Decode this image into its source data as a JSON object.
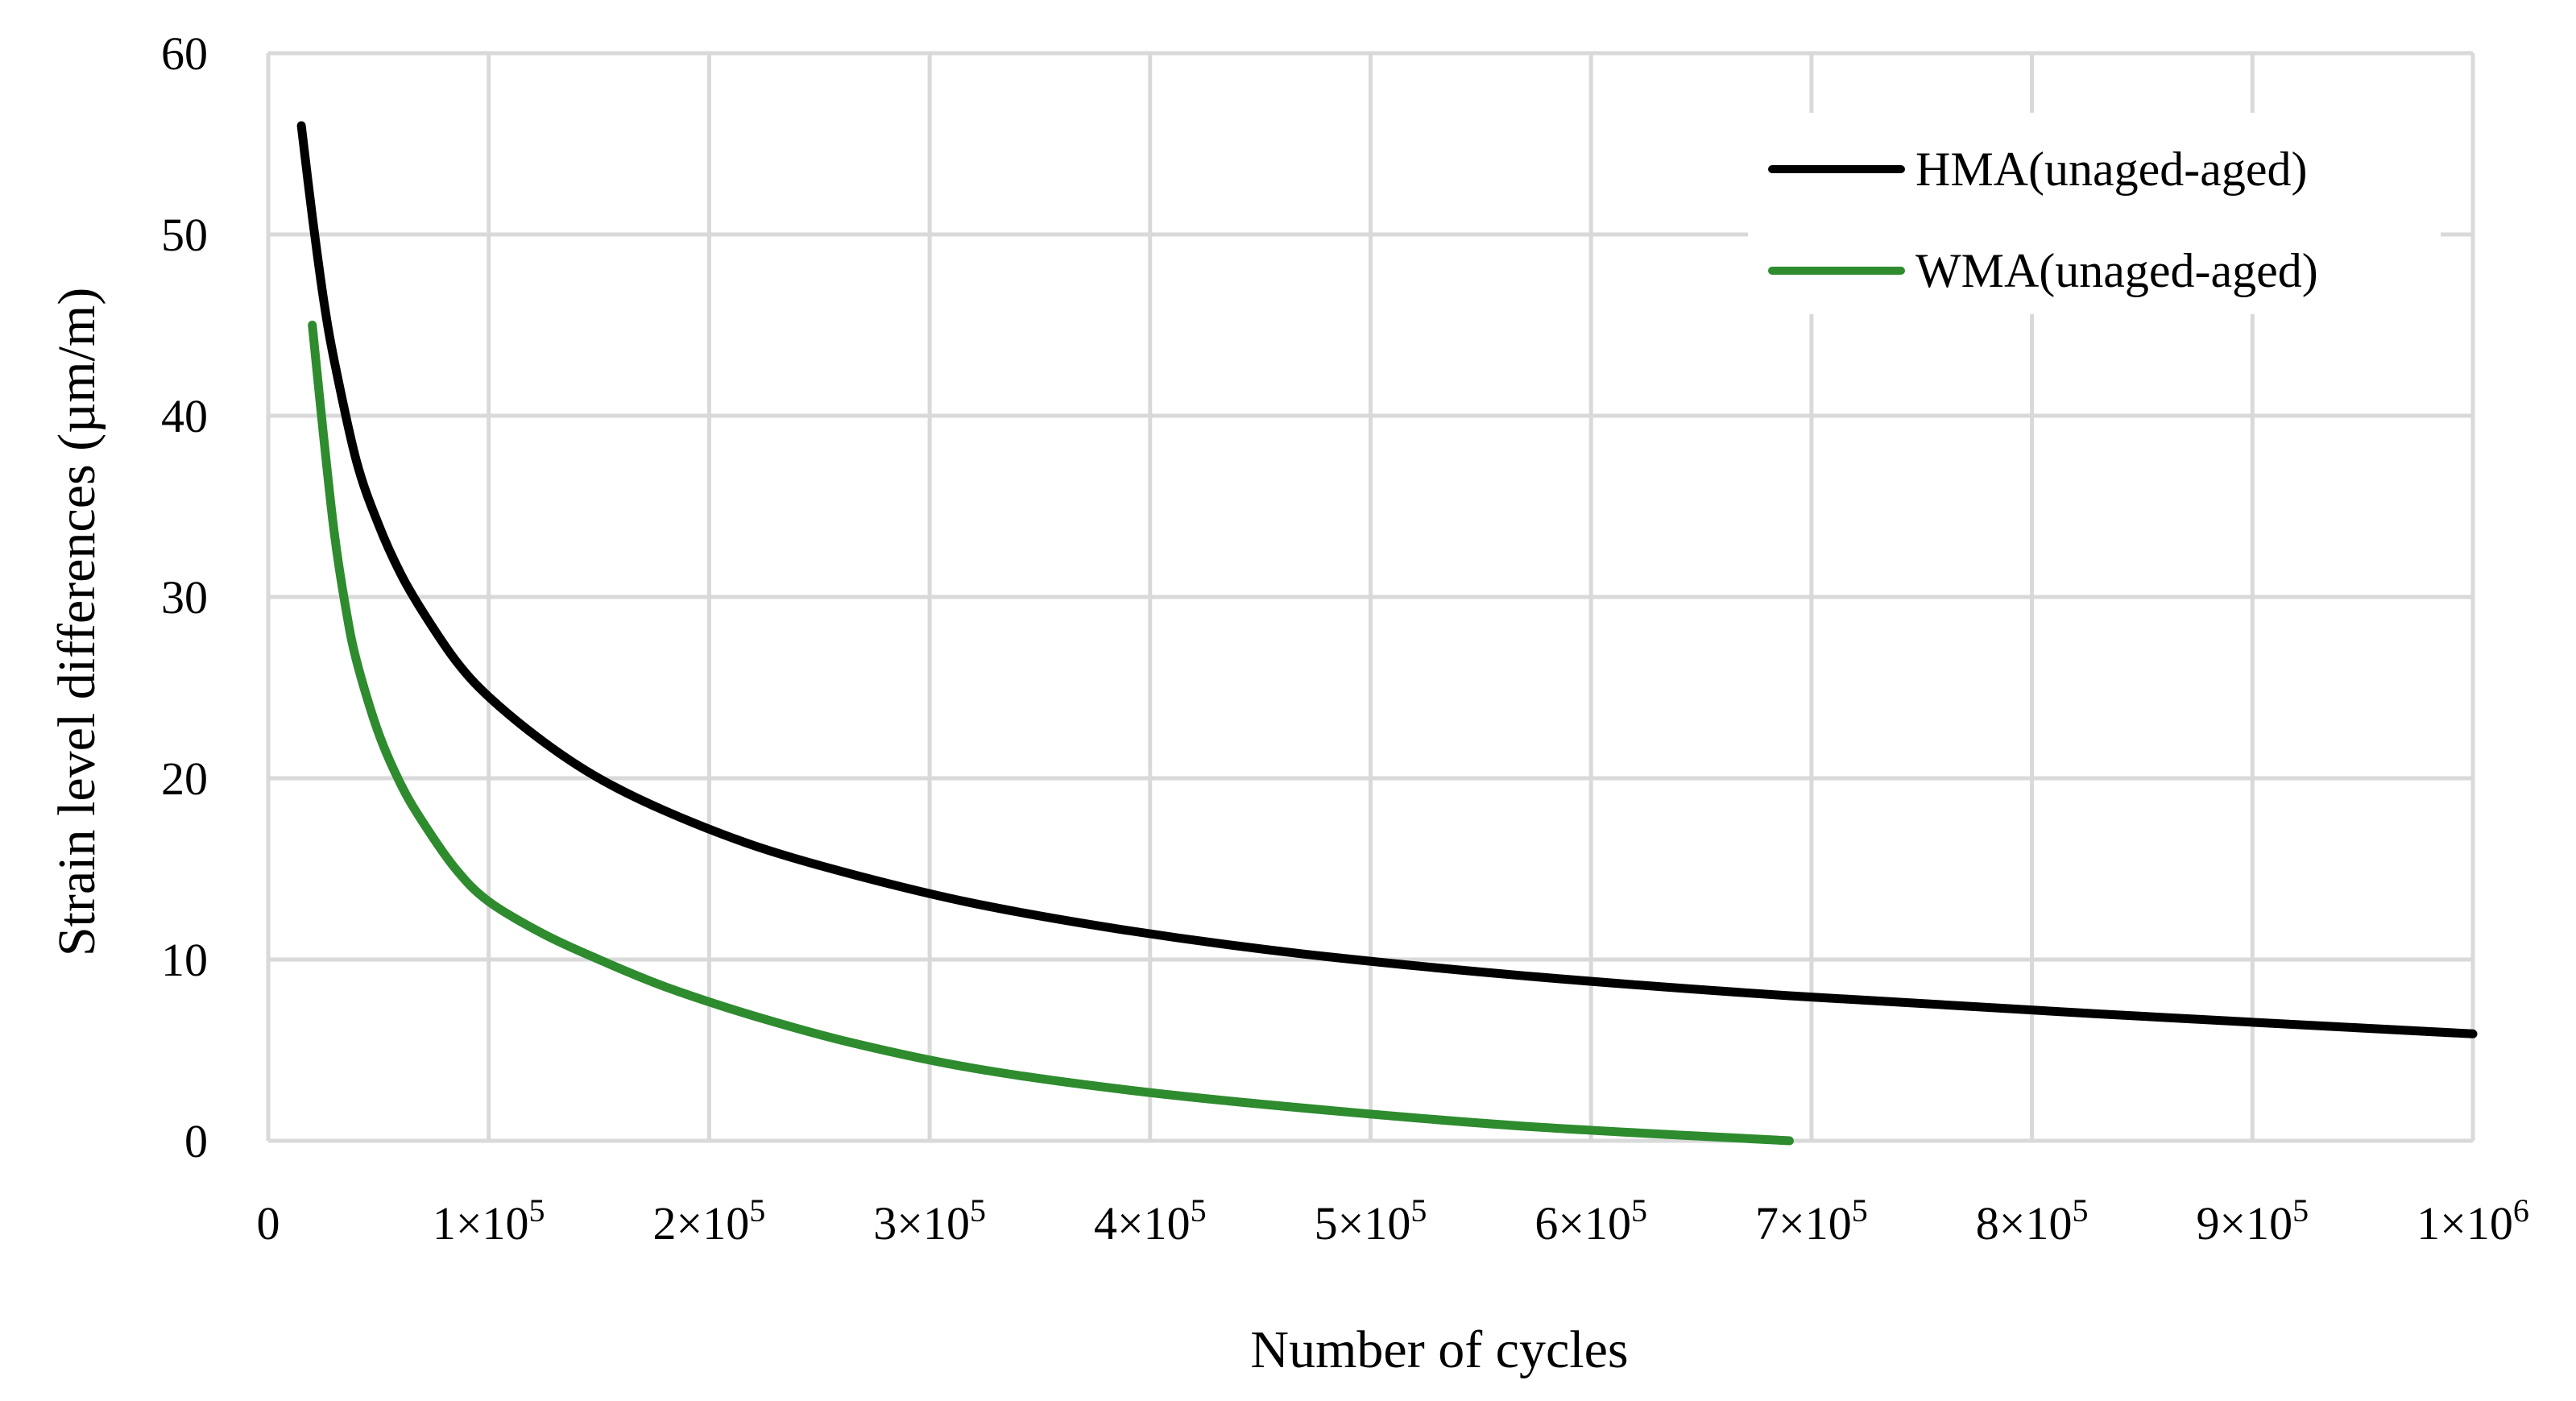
{
  "chart_data": {
    "type": "line",
    "title": "",
    "xlabel": "Number of cycles",
    "ylabel": "Strain level differences (µm/m)",
    "xlim": [
      0,
      1000000
    ],
    "ylim": [
      0,
      60
    ],
    "grid": true,
    "legend_position": "top-right",
    "x_ticks": [
      0,
      100000,
      200000,
      300000,
      400000,
      500000,
      600000,
      700000,
      800000,
      900000,
      1000000
    ],
    "x_tick_labels": [
      {
        "base": "0",
        "exp": ""
      },
      {
        "base": "1×10",
        "exp": "5"
      },
      {
        "base": "2×10",
        "exp": "5"
      },
      {
        "base": "3×10",
        "exp": "5"
      },
      {
        "base": "4×10",
        "exp": "5"
      },
      {
        "base": "5×10",
        "exp": "5"
      },
      {
        "base": "6×10",
        "exp": "5"
      },
      {
        "base": "7×10",
        "exp": "5"
      },
      {
        "base": "8×10",
        "exp": "5"
      },
      {
        "base": "9×10",
        "exp": "5"
      },
      {
        "base": "1×10",
        "exp": "6"
      }
    ],
    "y_ticks": [
      0,
      10,
      20,
      30,
      40,
      50,
      60
    ],
    "y_tick_labels": [
      "0",
      "10",
      "20",
      "30",
      "40",
      "50",
      "60"
    ],
    "series": [
      {
        "name": "HMA(unaged-aged)",
        "color": "#000000",
        "x": [
          15000,
          20000,
          25000,
          30000,
          40000,
          50000,
          60000,
          70000,
          85000,
          100000,
          125000,
          150000,
          180000,
          220000,
          265000,
          320000,
          390000,
          470000,
          570000,
          690000,
          830000,
          1000000
        ],
        "y": [
          56.0,
          51.0,
          46.5,
          43.0,
          37.5,
          34.0,
          31.3,
          29.2,
          26.5,
          24.5,
          22.0,
          20.0,
          18.2,
          16.3,
          14.7,
          13.1,
          11.6,
          10.3,
          9.1,
          8.0,
          7.0,
          5.9
        ]
      },
      {
        "name": "WMA(unaged-aged)",
        "color": "#2e8b2e",
        "x": [
          20000,
          25000,
          30000,
          35000,
          40000,
          50000,
          60000,
          70000,
          85000,
          100000,
          125000,
          150000,
          180000,
          220000,
          265000,
          320000,
          390000,
          470000,
          570000,
          690000
        ],
        "y": [
          45.0,
          39.0,
          33.5,
          29.5,
          26.5,
          22.5,
          19.7,
          17.6,
          15.0,
          13.2,
          11.4,
          10.0,
          8.5,
          6.9,
          5.4,
          4.0,
          2.8,
          1.8,
          0.8,
          0.0
        ]
      }
    ]
  }
}
